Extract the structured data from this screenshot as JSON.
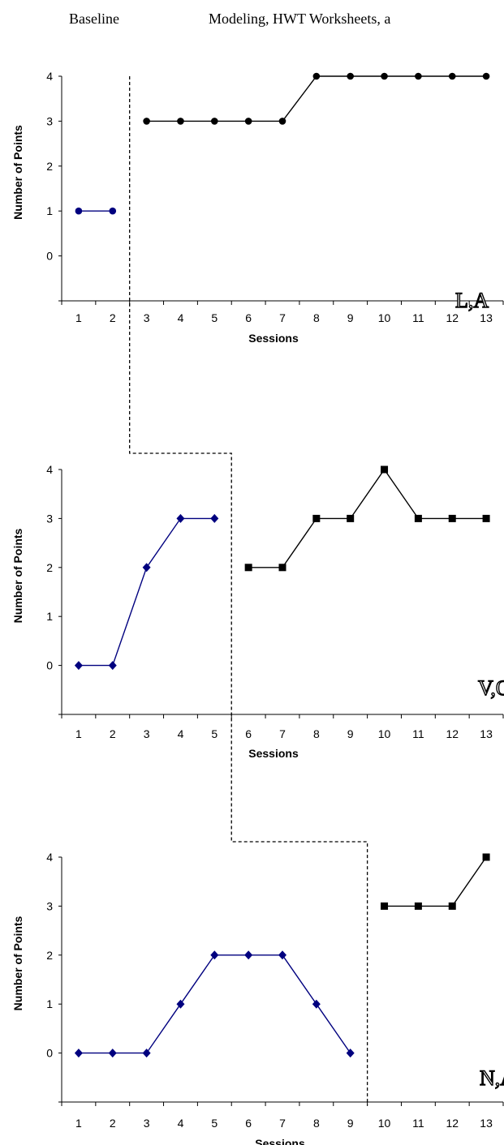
{
  "header": {
    "baseline_label": "Baseline",
    "treatment_label": "Modeling, HWT Worksheets, a"
  },
  "colors": {
    "baseline_series": "#00007f",
    "treatment_series": "#000000",
    "phase_line": "#000000"
  },
  "chart_data": [
    {
      "type": "line",
      "participant_label": "L,A",
      "xlabel": "Sessions",
      "ylabel": "Number of Points",
      "categories": [
        1,
        2,
        3,
        4,
        5,
        6,
        7,
        8,
        9,
        10,
        11,
        12,
        13
      ],
      "ylim": [
        -1,
        4
      ],
      "yticks": [
        0,
        1,
        2,
        3,
        4
      ],
      "grid": false,
      "marker_baseline": "circle",
      "marker_treatment": "circle",
      "phase_change_after_session": 2,
      "series": [
        {
          "phase": "baseline",
          "x": [
            1,
            2
          ],
          "y": [
            1,
            1
          ]
        },
        {
          "phase": "treatment",
          "x": [
            3,
            4,
            5,
            6,
            7,
            8,
            9,
            10,
            11,
            12,
            13
          ],
          "y": [
            3,
            3,
            3,
            3,
            3,
            4,
            4,
            4,
            4,
            4,
            4
          ]
        }
      ]
    },
    {
      "type": "line",
      "participant_label": "V,O",
      "xlabel": "Sessions",
      "ylabel": "Number of Points",
      "categories": [
        1,
        2,
        3,
        4,
        5,
        6,
        7,
        8,
        9,
        10,
        11,
        12,
        13
      ],
      "ylim": [
        -1,
        4
      ],
      "yticks": [
        0,
        1,
        2,
        3,
        4
      ],
      "grid": false,
      "marker_baseline": "diamond",
      "marker_treatment": "square",
      "phase_change_after_session": 5,
      "series": [
        {
          "phase": "baseline",
          "x": [
            1,
            2,
            3,
            4,
            5
          ],
          "y": [
            0,
            0,
            2,
            3,
            3
          ]
        },
        {
          "phase": "treatment",
          "x": [
            6,
            7,
            8,
            9,
            10,
            11,
            12,
            13
          ],
          "y": [
            2,
            2,
            3,
            3,
            4,
            3,
            3,
            3
          ]
        }
      ]
    },
    {
      "type": "line",
      "participant_label": "N,A",
      "xlabel": "Sessions",
      "ylabel": "Number of Points",
      "categories": [
        1,
        2,
        3,
        4,
        5,
        6,
        7,
        8,
        9,
        10,
        11,
        12,
        13
      ],
      "ylim": [
        -1,
        4
      ],
      "yticks": [
        0,
        1,
        2,
        3,
        4
      ],
      "grid": false,
      "marker_baseline": "diamond",
      "marker_treatment": "square",
      "phase_change_after_session": 9,
      "series": [
        {
          "phase": "baseline",
          "x": [
            1,
            2,
            3,
            4,
            5,
            6,
            7,
            8,
            9
          ],
          "y": [
            0,
            0,
            0,
            1,
            2,
            2,
            2,
            1,
            0
          ]
        },
        {
          "phase": "treatment",
          "x": [
            10,
            11,
            12,
            13
          ],
          "y": [
            3,
            3,
            3,
            4
          ]
        }
      ]
    }
  ]
}
